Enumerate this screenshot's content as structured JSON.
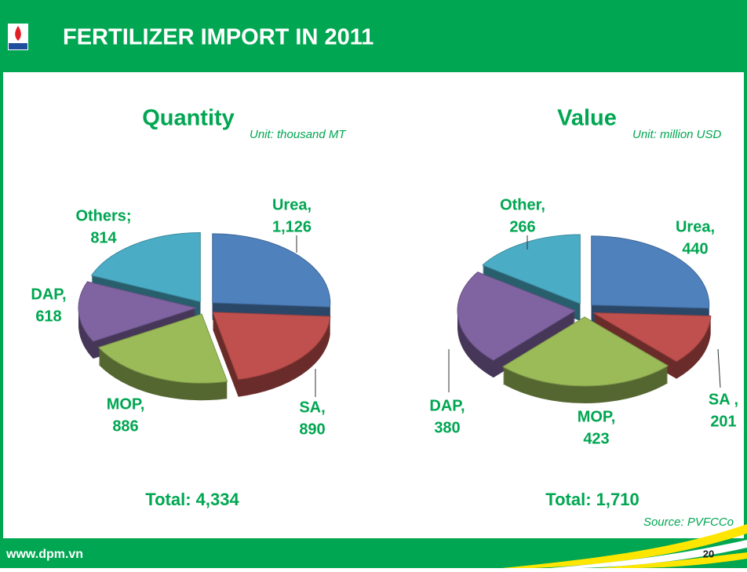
{
  "header": {
    "title": "FERTILIZER IMPORT IN 2011"
  },
  "chart_data": [
    {
      "type": "pie",
      "title": "Quantity",
      "unit": "Unit: thousand MT",
      "categories": [
        "Urea,",
        "SA,",
        "MOP,",
        "DAP,",
        "Others;"
      ],
      "values": [
        1126,
        890,
        886,
        618,
        814
      ],
      "value_labels": [
        "1,126",
        "890",
        "886",
        "618",
        "814"
      ],
      "colors": [
        "#4f81bd",
        "#c0504d",
        "#9bbb59",
        "#8064a2",
        "#4bacc6"
      ],
      "total_label": "Total: 4,334"
    },
    {
      "type": "pie",
      "title": "Value",
      "unit": "Unit: million USD",
      "categories": [
        "Urea,",
        "SA ,",
        "MOP,",
        "DAP,",
        "Other,"
      ],
      "values": [
        440,
        201,
        423,
        380,
        266
      ],
      "value_labels": [
        "440",
        "201",
        "423",
        "380",
        "266"
      ],
      "colors": [
        "#4f81bd",
        "#c0504d",
        "#9bbb59",
        "#8064a2",
        "#4bacc6"
      ],
      "total_label": "Total: 1,710"
    }
  ],
  "source": "Source: PVFCCo",
  "footer": {
    "website": "www.dpm.vn",
    "page": "20"
  }
}
